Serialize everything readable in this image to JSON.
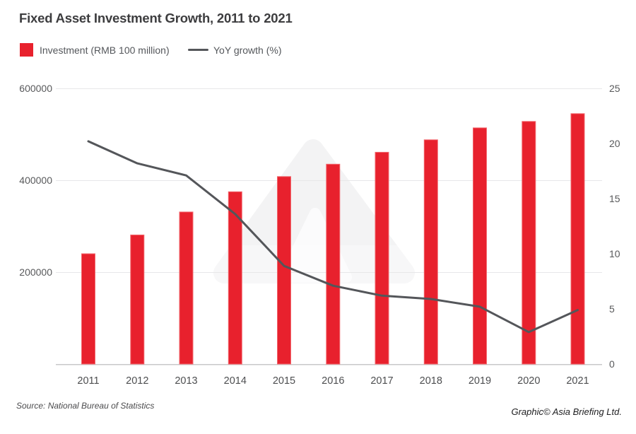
{
  "title": "Fixed Asset Investment Growth, 2011 to 2021",
  "legend": {
    "investment_label": "Investment (RMB 100 million)",
    "yoy_label": "YoY growth (%)"
  },
  "source": "Source: National Bureau of Statistics",
  "credit": "Graphic© Asia Briefing Ltd.",
  "colors": {
    "bar": "#e8212d",
    "bar_edge": "#f2676d",
    "line": "#54565a",
    "grid": "#e7e7e9",
    "axis_line": "#c8c8ca",
    "tick_label": "#58595b",
    "category_label": "#4d4e50",
    "watermark": "#f3f3f4",
    "watermark_notch": "#fbfbfc"
  },
  "chart_data": {
    "type": "bar",
    "title": "Fixed Asset Investment Growth, 2011 to 2021",
    "categories": [
      "2011",
      "2012",
      "2013",
      "2014",
      "2015",
      "2016",
      "2017",
      "2018",
      "2019",
      "2020",
      "2021"
    ],
    "series": [
      {
        "name": "Investment (RMB 100 million)",
        "type": "bar",
        "axis": "left",
        "values": [
          240000,
          281000,
          331000,
          375000,
          408000,
          435000,
          461000,
          488000,
          514000,
          528000,
          545000
        ]
      },
      {
        "name": "YoY growth (%)",
        "type": "line",
        "axis": "right",
        "values": [
          20.2,
          18.2,
          17.1,
          13.6,
          8.9,
          7.1,
          6.2,
          5.9,
          5.2,
          2.9,
          4.9
        ]
      }
    ],
    "left_axis": {
      "label": "Investment (RMB 100 million)",
      "ticks": [
        200000,
        400000,
        600000
      ],
      "range": [
        0,
        600000
      ]
    },
    "right_axis": {
      "label": "YoY growth (%)",
      "ticks": [
        0,
        5,
        10,
        15,
        20,
        25
      ],
      "range": [
        0,
        25
      ]
    },
    "grid": "horizontal",
    "legend_position": "top-left",
    "xlabel": "",
    "ylabel": ""
  }
}
